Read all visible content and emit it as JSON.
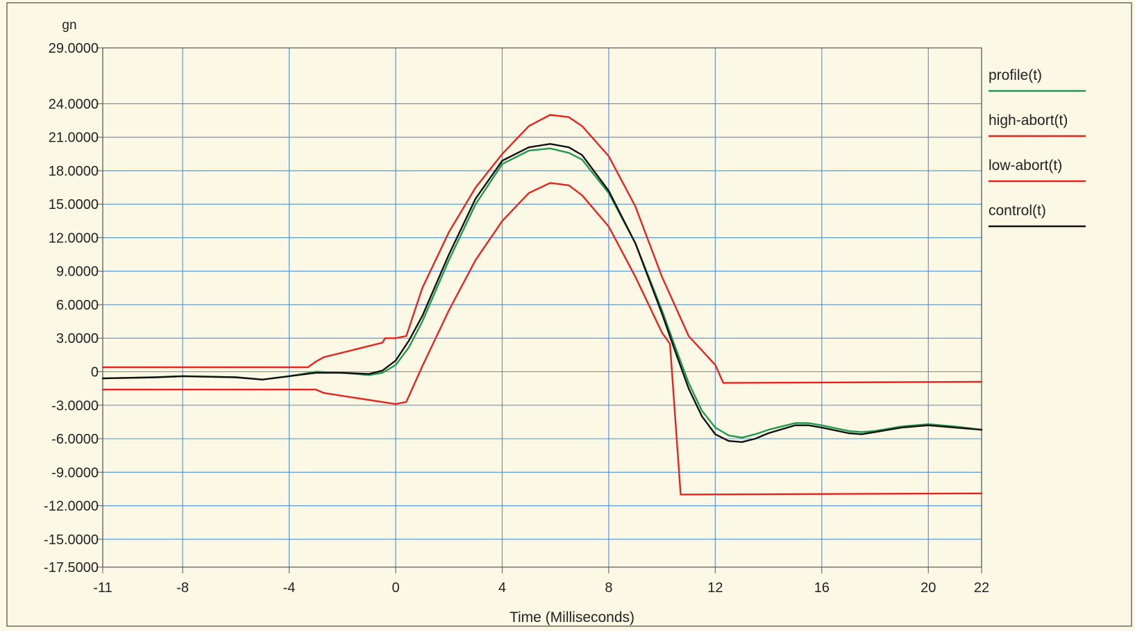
{
  "chart_data": {
    "type": "line",
    "title": "",
    "ylabel": "gn",
    "xlabel": "Time (Milliseconds)",
    "xlim": [
      -11,
      22
    ],
    "ylim": [
      -17.5,
      29
    ],
    "x_ticks": [
      -11,
      -8,
      -4,
      0,
      4,
      8,
      12,
      16,
      20,
      22
    ],
    "x_tick_labels": [
      "-11",
      "-8",
      "-4",
      "0",
      "4",
      "8",
      "12",
      "16",
      "20",
      "22"
    ],
    "y_ticks": [
      29,
      24,
      21,
      18,
      15,
      12,
      9,
      6,
      3,
      0,
      -3,
      -6,
      -9,
      -12,
      -15,
      -17.5
    ],
    "y_tick_labels": [
      "29.0000",
      "24.0000",
      "21.0000",
      "18.0000",
      "15.0000",
      "12.0000",
      "9.0000",
      "6.0000",
      "3.0000",
      "0",
      "-3.0000",
      "-6.0000",
      "-9.0000",
      "-12.0000",
      "-15.0000",
      "-17.5000"
    ],
    "grid": true,
    "legend_position": "right",
    "series": [
      {
        "name": "profile(t)",
        "color": "#1f9a4c",
        "x": [
          -11,
          -9,
          -8,
          -6,
          -5,
          -4,
          -3,
          -2,
          -1,
          -0.5,
          0,
          0.5,
          1,
          2,
          3,
          4,
          5,
          5.8,
          6.5,
          7,
          8,
          9,
          10,
          10.5,
          11,
          11.5,
          12,
          12.5,
          13,
          13.5,
          14,
          15,
          15.5,
          16,
          17,
          17.5,
          18,
          19,
          20,
          21,
          22
        ],
        "y": [
          -0.6,
          -0.5,
          -0.4,
          -0.5,
          -0.7,
          -0.4,
          0,
          -0.1,
          -0.3,
          -0.1,
          0.6,
          2.2,
          4.5,
          10,
          15,
          18.6,
          19.8,
          20,
          19.6,
          19,
          16,
          11.5,
          5.5,
          2.2,
          -1,
          -3.5,
          -5,
          -5.7,
          -5.9,
          -5.6,
          -5.2,
          -4.6,
          -4.6,
          -4.8,
          -5.3,
          -5.4,
          -5.3,
          -4.9,
          -4.7,
          -4.9,
          -5.2
        ]
      },
      {
        "name": "high-abort(t)",
        "color": "#e8231f",
        "x": [
          -11,
          -3.3,
          -3,
          -2.7,
          -0.5,
          -0.4,
          0,
          0.4,
          1,
          2,
          3,
          4,
          5,
          5.8,
          6.5,
          7,
          8,
          9,
          10,
          11,
          12,
          12.3,
          22
        ],
        "y": [
          0.4,
          0.4,
          0.9,
          1.3,
          2.6,
          3,
          3,
          3.2,
          7.5,
          12.5,
          16.5,
          19.5,
          22,
          23,
          22.8,
          22,
          19.3,
          14.8,
          8.5,
          3.2,
          0.6,
          -1,
          -0.9
        ]
      },
      {
        "name": "low-abort(t)",
        "color": "#e8231f",
        "x": [
          -11,
          -3,
          -2.7,
          0,
          0.4,
          1,
          2,
          3,
          4,
          5,
          5.8,
          6.5,
          7,
          8,
          9,
          10,
          10.3,
          10.7,
          22
        ],
        "y": [
          -1.6,
          -1.6,
          -1.9,
          -2.9,
          -2.7,
          0.5,
          5.5,
          10,
          13.5,
          16,
          16.9,
          16.7,
          15.8,
          13,
          8.5,
          3.5,
          2.5,
          -11,
          -10.9
        ]
      },
      {
        "name": "control(t)",
        "color": "#111111",
        "x": [
          -11,
          -9,
          -8,
          -6,
          -5,
          -4,
          -3,
          -2,
          -1,
          -0.5,
          0,
          0.5,
          1,
          2,
          3,
          4,
          5,
          5.8,
          6.5,
          7,
          8,
          9,
          10,
          10.5,
          11,
          11.5,
          12,
          12.5,
          13,
          13.5,
          14,
          15,
          15.5,
          16,
          17,
          17.5,
          18,
          19,
          20,
          21,
          22
        ],
        "y": [
          -0.6,
          -0.5,
          -0.4,
          -0.5,
          -0.7,
          -0.4,
          -0.1,
          -0.1,
          -0.2,
          0.1,
          1,
          2.8,
          5,
          10.5,
          15.5,
          18.9,
          20.1,
          20.4,
          20.1,
          19.4,
          16.2,
          11.5,
          5.2,
          1.8,
          -1.5,
          -4,
          -5.6,
          -6.2,
          -6.3,
          -6,
          -5.5,
          -4.8,
          -4.8,
          -5,
          -5.5,
          -5.6,
          -5.4,
          -5,
          -4.8,
          -5,
          -5.2
        ]
      }
    ]
  }
}
